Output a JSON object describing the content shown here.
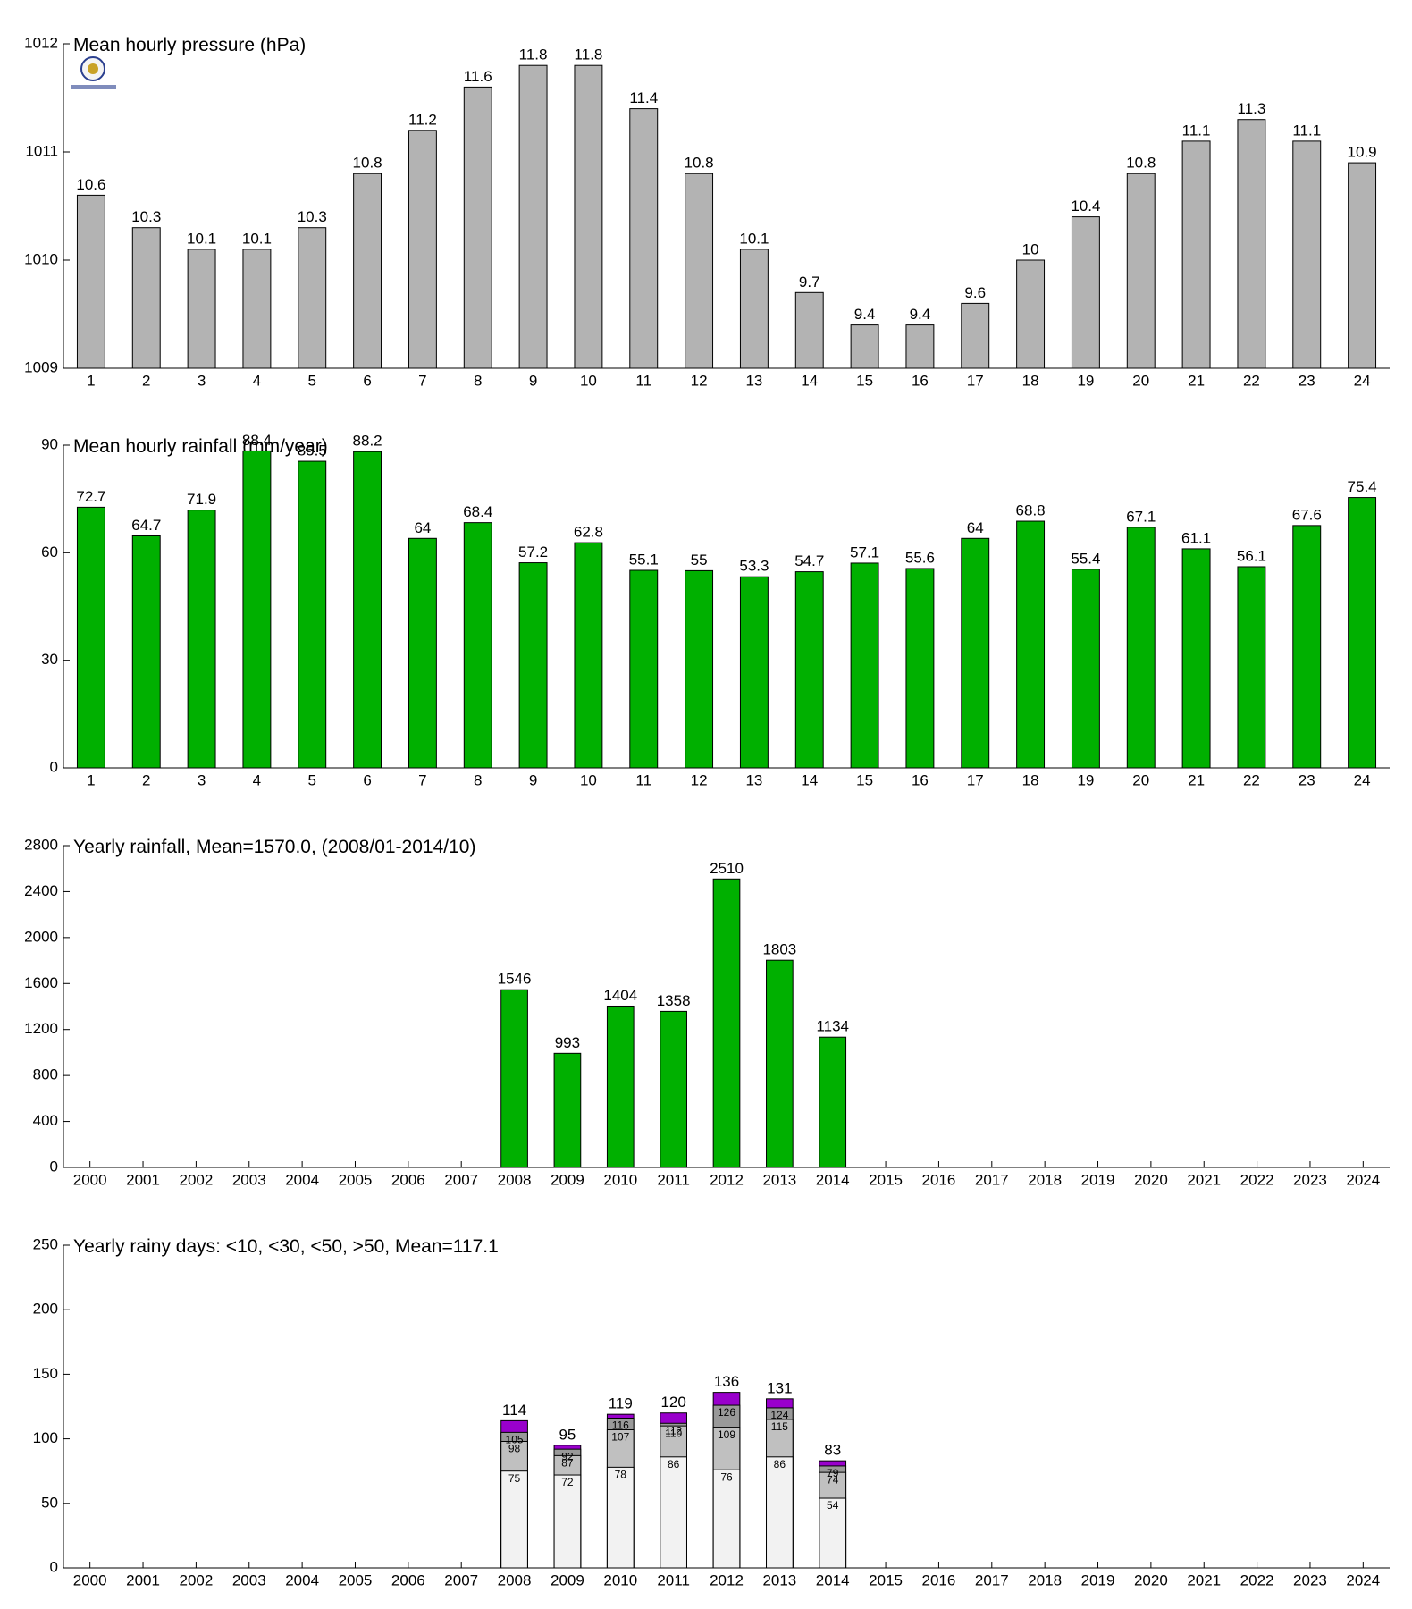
{
  "chart_data": [
    {
      "type": "bar",
      "title": "Mean hourly pressure (hPa)",
      "categories": [
        "1",
        "2",
        "3",
        "4",
        "5",
        "6",
        "7",
        "8",
        "9",
        "10",
        "11",
        "12",
        "13",
        "14",
        "15",
        "16",
        "17",
        "18",
        "19",
        "20",
        "21",
        "22",
        "23",
        "24"
      ],
      "values": [
        1010.6,
        1010.3,
        1010.1,
        1010.1,
        1010.3,
        1010.8,
        1011.2,
        1011.6,
        1011.8,
        1011.8,
        1011.4,
        1010.8,
        1010.1,
        1009.7,
        1009.4,
        1009.4,
        1009.6,
        1010.0,
        1010.4,
        1010.8,
        1011.1,
        1011.3,
        1011.1,
        1010.9
      ],
      "value_labels": [
        "10.6",
        "10.3",
        "10.1",
        "10.1",
        "10.3",
        "10.8",
        "11.2",
        "11.6",
        "11.8",
        "11.8",
        "11.4",
        "10.8",
        "10.1",
        "9.7",
        "9.4",
        "9.4",
        "9.6",
        "10",
        "10.4",
        "10.8",
        "11.1",
        "11.3",
        "11.1",
        "10.9"
      ],
      "color": "#b3b3b3",
      "ylim": [
        1009,
        1012
      ],
      "yticks": [
        1009,
        1010,
        1011,
        1012
      ],
      "grid": false
    },
    {
      "type": "bar",
      "title": "Mean hourly rainfall (mm/year)",
      "categories": [
        "1",
        "2",
        "3",
        "4",
        "5",
        "6",
        "7",
        "8",
        "9",
        "10",
        "11",
        "12",
        "13",
        "14",
        "15",
        "16",
        "17",
        "18",
        "19",
        "20",
        "21",
        "22",
        "23",
        "24"
      ],
      "values": [
        72.7,
        64.7,
        71.9,
        88.4,
        85.5,
        88.2,
        64,
        68.4,
        57.2,
        62.8,
        55.1,
        55,
        53.3,
        54.7,
        57.1,
        55.6,
        64,
        68.8,
        55.4,
        67.1,
        61.1,
        56.1,
        67.6,
        75.4
      ],
      "color": "#00b000",
      "ylim": [
        0,
        90
      ],
      "yticks": [
        0,
        30,
        60,
        90
      ],
      "grid": false
    },
    {
      "type": "bar",
      "title": "Yearly rainfall, Mean=1570.0, (2008/01-2014/10)",
      "categories": [
        "2000",
        "2001",
        "2002",
        "2003",
        "2004",
        "2005",
        "2006",
        "2007",
        "2008",
        "2009",
        "2010",
        "2011",
        "2012",
        "2013",
        "2014",
        "2015",
        "2016",
        "2017",
        "2018",
        "2019",
        "2020",
        "2021",
        "2022",
        "2023",
        "2024"
      ],
      "values": [
        null,
        null,
        null,
        null,
        null,
        null,
        null,
        null,
        1546,
        993,
        1404,
        1358,
        2510,
        1803,
        1134,
        null,
        null,
        null,
        null,
        null,
        null,
        null,
        null,
        null,
        null
      ],
      "color": "#00b000",
      "ylim": [
        0,
        2800
      ],
      "yticks": [
        0,
        400,
        800,
        1200,
        1600,
        2000,
        2400,
        2800
      ],
      "grid": false
    },
    {
      "type": "bar",
      "title": "Yearly rainy days: <10, <30, <50, >50, Mean=117.1",
      "categories": [
        "2000",
        "2001",
        "2002",
        "2003",
        "2004",
        "2005",
        "2006",
        "2007",
        "2008",
        "2009",
        "2010",
        "2011",
        "2012",
        "2013",
        "2014",
        "2015",
        "2016",
        "2017",
        "2018",
        "2019",
        "2020",
        "2021",
        "2022",
        "2023",
        "2024"
      ],
      "series": [
        {
          "color": "#f2f2f2",
          "values": [
            null,
            null,
            null,
            null,
            null,
            null,
            null,
            null,
            75,
            72,
            78,
            86,
            76,
            86,
            54,
            null,
            null,
            null,
            null,
            null,
            null,
            null,
            null,
            null,
            null
          ]
        },
        {
          "color": "#c0c0c0",
          "values": [
            null,
            null,
            null,
            null,
            null,
            null,
            null,
            null,
            98,
            87,
            107,
            110,
            109,
            115,
            74,
            null,
            null,
            null,
            null,
            null,
            null,
            null,
            null,
            null,
            null
          ]
        },
        {
          "color": "#999999",
          "values": [
            null,
            null,
            null,
            null,
            null,
            null,
            null,
            null,
            105,
            92,
            116,
            112,
            126,
            124,
            79,
            null,
            null,
            null,
            null,
            null,
            null,
            null,
            null,
            null,
            null
          ]
        },
        {
          "color": "#9900cc",
          "values": [
            null,
            null,
            null,
            null,
            null,
            null,
            null,
            null,
            114,
            95,
            119,
            120,
            136,
            131,
            83,
            null,
            null,
            null,
            null,
            null,
            null,
            null,
            null,
            null,
            null
          ]
        }
      ],
      "ylim": [
        0,
        250
      ],
      "yticks": [
        0,
        50,
        100,
        150,
        200,
        250
      ],
      "grid": false
    }
  ]
}
